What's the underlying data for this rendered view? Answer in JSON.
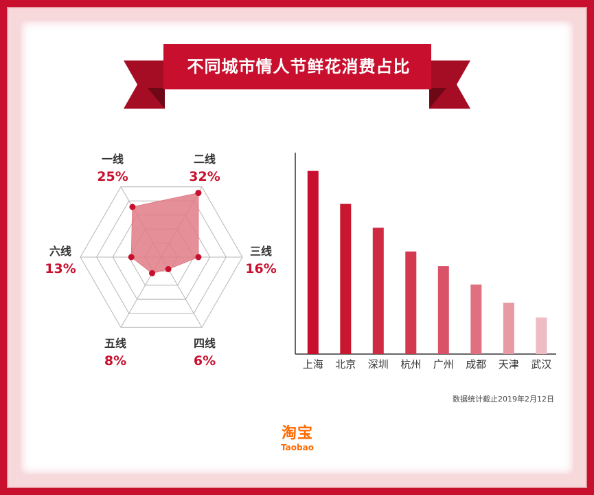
{
  "title": "不同城市情人节鲜花消费占比",
  "note": "数据统计截止2019年2月12日",
  "logo": {
    "cn": "淘宝",
    "en": "Taobao"
  },
  "chart_data": [
    {
      "type": "radar",
      "categories": [
        "一线",
        "二线",
        "三线",
        "四线",
        "五线",
        "六线"
      ],
      "value_labels": [
        "25%",
        "32%",
        "16%",
        "6%",
        "8%",
        "13%"
      ],
      "values": [
        25,
        32,
        16,
        6,
        8,
        13
      ],
      "range": [
        0,
        35
      ],
      "grid": true,
      "color": "#c8102e",
      "fill": "#e07b86"
    },
    {
      "type": "bar",
      "categories": [
        "上海",
        "北京",
        "深圳",
        "杭州",
        "广州",
        "成都",
        "天津",
        "武汉"
      ],
      "values": [
        100,
        82,
        69,
        56,
        48,
        38,
        28,
        20
      ],
      "ylim": [
        0,
        110
      ],
      "colors": [
        "#c8102e",
        "#c9172f",
        "#d02a42",
        "#d4384f",
        "#da5267",
        "#e0707f",
        "#e79aa4",
        "#eebcc2"
      ]
    }
  ]
}
